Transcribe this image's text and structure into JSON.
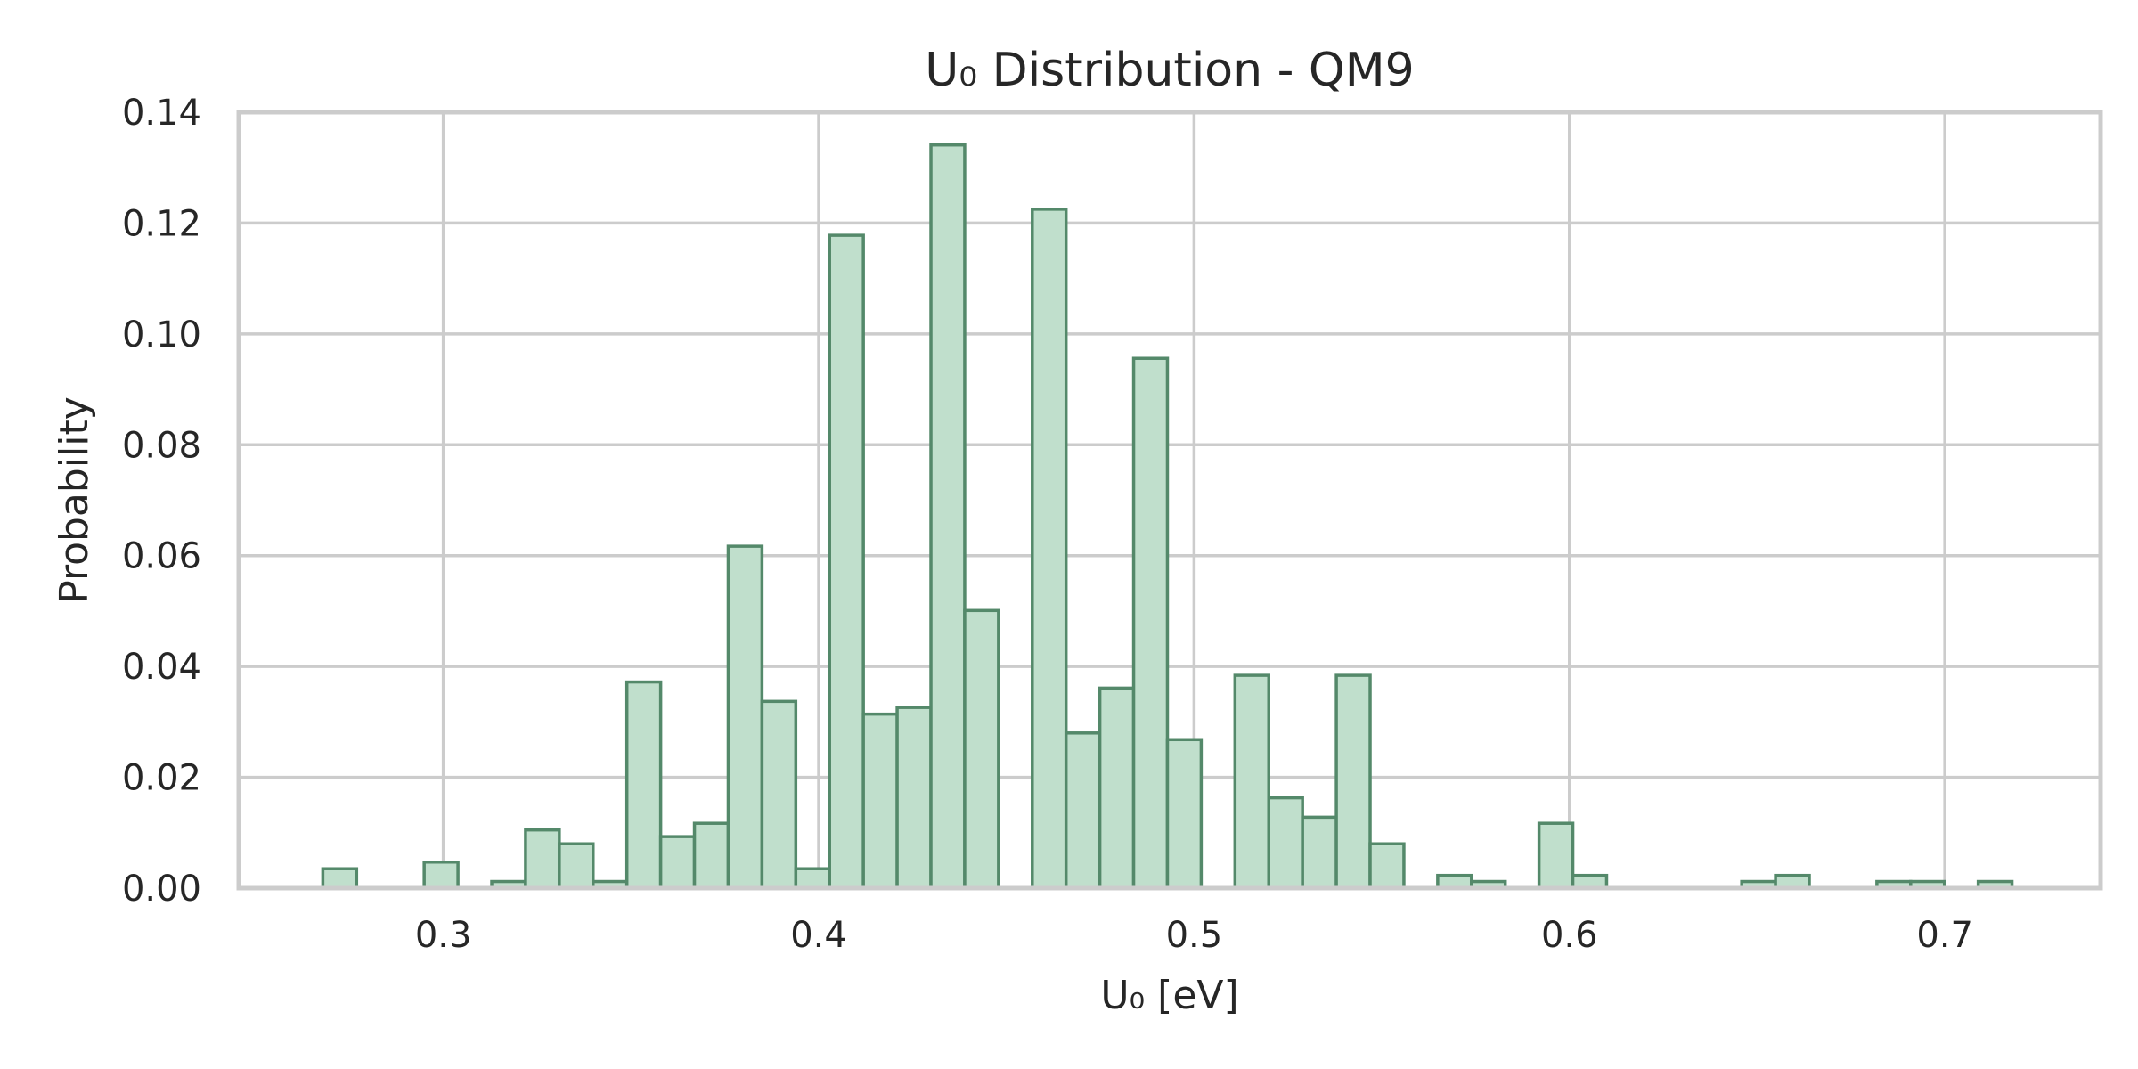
{
  "chart_data": {
    "type": "bar",
    "title": "U₀ Distribution - QM9",
    "xlabel": "U₀ [eV]",
    "ylabel": "Probability",
    "xlim": [
      0.2455,
      0.7415
    ],
    "ylim": [
      0,
      0.14
    ],
    "x_ticks": [
      0.3,
      0.4,
      0.5,
      0.6,
      0.7
    ],
    "x_tick_labels": [
      "0.3",
      "0.4",
      "0.5",
      "0.6",
      "0.7"
    ],
    "y_ticks": [
      0,
      0.02,
      0.04,
      0.06,
      0.08,
      0.1,
      0.12,
      0.14
    ],
    "y_tick_labels": [
      "0.00",
      "0.02",
      "0.04",
      "0.06",
      "0.08",
      "0.10",
      "0.12",
      "0.14"
    ],
    "grid": true,
    "bin_width": 0.009,
    "bin_left_edges": [
      0.2679,
      0.2769,
      0.2859,
      0.2949,
      0.3039,
      0.3129,
      0.3219,
      0.3309,
      0.3399,
      0.3489,
      0.3579,
      0.3669,
      0.3759,
      0.3849,
      0.3939,
      0.4029,
      0.4119,
      0.4209,
      0.4299,
      0.4389,
      0.4479,
      0.4569,
      0.4659,
      0.4749,
      0.4839,
      0.4929,
      0.5019,
      0.5109,
      0.5199,
      0.5289,
      0.5379,
      0.5469,
      0.5559,
      0.5649,
      0.5739,
      0.5829,
      0.5919,
      0.6009,
      0.6099,
      0.6189,
      0.6279,
      0.6369,
      0.6459,
      0.6549,
      0.6639,
      0.6729,
      0.6819,
      0.6909,
      0.6999,
      0.7089
    ],
    "values": [
      0.0035,
      0,
      0,
      0.0047,
      0,
      0.0012,
      0.0105,
      0.008,
      0.0012,
      0.0372,
      0.0093,
      0.0117,
      0.0617,
      0.0337,
      0.0035,
      0.1178,
      0.0314,
      0.0326,
      0.1341,
      0.0501,
      0,
      0.1225,
      0.028,
      0.0361,
      0.0956,
      0.0268,
      0,
      0.0384,
      0.0163,
      0.0128,
      0.0384,
      0.008,
      0,
      0.0023,
      0.0012,
      0,
      0.0117,
      0.0023,
      0,
      0,
      0,
      0,
      0.0012,
      0.0023,
      0,
      0,
      0.0012,
      0.0012,
      0,
      0.0012
    ],
    "colors": {
      "bar_fill": "#c0dfcc",
      "bar_edge": "#54896a",
      "grid": "#cccccc",
      "text": "#262626"
    }
  }
}
